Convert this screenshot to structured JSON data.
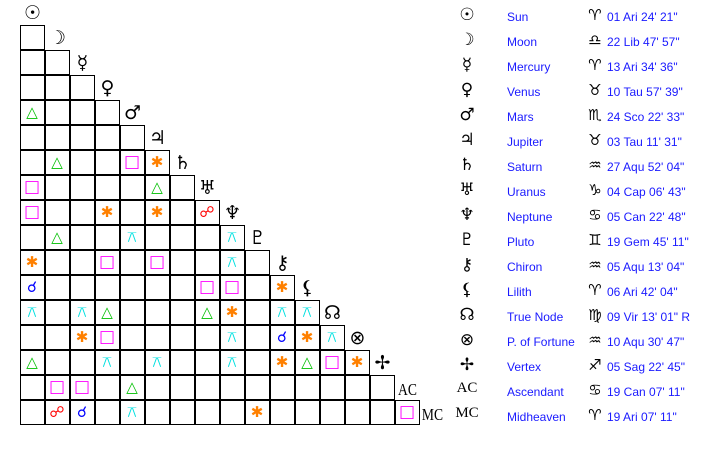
{
  "bodies": [
    {
      "name": "Sun",
      "glyph": "☉",
      "sign_glyph": "♈",
      "position": "01 Ari 24' 21\""
    },
    {
      "name": "Moon",
      "glyph": "☽",
      "sign_glyph": "♎",
      "position": "22 Lib 47' 57\""
    },
    {
      "name": "Mercury",
      "glyph": "☿",
      "sign_glyph": "♈",
      "position": "13 Ari 34' 36\""
    },
    {
      "name": "Venus",
      "glyph": "♀",
      "sign_glyph": "♉",
      "position": "10 Tau 57' 39\""
    },
    {
      "name": "Mars",
      "glyph": "♂",
      "sign_glyph": "♏",
      "position": "24 Sco 22' 33\""
    },
    {
      "name": "Jupiter",
      "glyph": "♃",
      "sign_glyph": "♉",
      "position": "03 Tau 11' 31\""
    },
    {
      "name": "Saturn",
      "glyph": "♄",
      "sign_glyph": "♒",
      "position": "27 Aqu 52' 04\""
    },
    {
      "name": "Uranus",
      "glyph": "♅",
      "sign_glyph": "♑",
      "position": "04 Cap 06' 43\""
    },
    {
      "name": "Neptune",
      "glyph": "♆",
      "sign_glyph": "♋",
      "position": "05 Can 22' 48\""
    },
    {
      "name": "Pluto",
      "glyph": "♇",
      "sign_glyph": "♊",
      "position": "19 Gem 45' 11\""
    },
    {
      "name": "Chiron",
      "glyph": "⚷",
      "sign_glyph": "♒",
      "position": "05 Aqu 13' 04\""
    },
    {
      "name": "Lilith",
      "glyph": "⚸",
      "sign_glyph": "♈",
      "position": "06 Ari 42' 04\""
    },
    {
      "name": "True Node",
      "glyph": "☊",
      "sign_glyph": "♍",
      "position": "09 Vir 13' 01\" R"
    },
    {
      "name": "P. of Fortune",
      "glyph": "⊗",
      "sign_glyph": "♒",
      "position": "10 Aqu 30' 47\""
    },
    {
      "name": "Vertex",
      "glyph": "✢",
      "sign_glyph": "♐",
      "position": "05 Sag 22' 45\""
    },
    {
      "name": "Ascendant",
      "glyph": "AC",
      "sign_glyph": "♋",
      "position": "19 Can 07' 11\""
    },
    {
      "name": "Midheaven",
      "glyph": "MC",
      "sign_glyph": "♈",
      "position": "19 Ari 07' 11\""
    }
  ],
  "aspect_styles": {
    "conjunction": {
      "symbol": "☌",
      "color": "#0000ff"
    },
    "opposition": {
      "symbol": "☍",
      "color": "#ff0000"
    },
    "trine": {
      "symbol": "△",
      "color": "#00c000"
    },
    "square": {
      "symbol": "□",
      "color": "#ff00ff"
    },
    "sextile": {
      "symbol": "✱",
      "color": "#ff8000"
    },
    "quincunx": {
      "symbol": "⚻",
      "color": "#00e0e0"
    }
  },
  "aspects": [
    {
      "a": "Mars",
      "b": "Sun",
      "type": "trine"
    },
    {
      "a": "Saturn",
      "b": "Moon",
      "type": "trine"
    },
    {
      "a": "Saturn",
      "b": "Mars",
      "type": "square"
    },
    {
      "a": "Saturn",
      "b": "Jupiter",
      "type": "sextile"
    },
    {
      "a": "Uranus",
      "b": "Sun",
      "type": "square"
    },
    {
      "a": "Uranus",
      "b": "Jupiter",
      "type": "trine"
    },
    {
      "a": "Neptune",
      "b": "Sun",
      "type": "square"
    },
    {
      "a": "Neptune",
      "b": "Venus",
      "type": "sextile"
    },
    {
      "a": "Neptune",
      "b": "Jupiter",
      "type": "sextile"
    },
    {
      "a": "Neptune",
      "b": "Uranus",
      "type": "opposition"
    },
    {
      "a": "Pluto",
      "b": "Moon",
      "type": "trine"
    },
    {
      "a": "Pluto",
      "b": "Mars",
      "type": "quincunx"
    },
    {
      "a": "Pluto",
      "b": "Neptune",
      "type": "quincunx"
    },
    {
      "a": "Chiron",
      "b": "Sun",
      "type": "sextile"
    },
    {
      "a": "Chiron",
      "b": "Venus",
      "type": "square"
    },
    {
      "a": "Chiron",
      "b": "Jupiter",
      "type": "square"
    },
    {
      "a": "Chiron",
      "b": "Neptune",
      "type": "quincunx"
    },
    {
      "a": "Lilith",
      "b": "Sun",
      "type": "conjunction"
    },
    {
      "a": "Lilith",
      "b": "Uranus",
      "type": "square"
    },
    {
      "a": "Lilith",
      "b": "Neptune",
      "type": "square"
    },
    {
      "a": "Lilith",
      "b": "Chiron",
      "type": "sextile"
    },
    {
      "a": "True Node",
      "b": "Sun",
      "type": "quincunx"
    },
    {
      "a": "True Node",
      "b": "Mercury",
      "type": "quincunx"
    },
    {
      "a": "True Node",
      "b": "Venus",
      "type": "trine"
    },
    {
      "a": "True Node",
      "b": "Uranus",
      "type": "trine"
    },
    {
      "a": "True Node",
      "b": "Neptune",
      "type": "sextile"
    },
    {
      "a": "True Node",
      "b": "Chiron",
      "type": "quincunx"
    },
    {
      "a": "True Node",
      "b": "Lilith",
      "type": "quincunx"
    },
    {
      "a": "P. of Fortune",
      "b": "Mercury",
      "type": "sextile"
    },
    {
      "a": "P. of Fortune",
      "b": "Venus",
      "type": "square"
    },
    {
      "a": "P. of Fortune",
      "b": "Neptune",
      "type": "quincunx"
    },
    {
      "a": "P. of Fortune",
      "b": "Chiron",
      "type": "conjunction"
    },
    {
      "a": "P. of Fortune",
      "b": "Lilith",
      "type": "sextile"
    },
    {
      "a": "P. of Fortune",
      "b": "True Node",
      "type": "quincunx"
    },
    {
      "a": "Vertex",
      "b": "Sun",
      "type": "trine"
    },
    {
      "a": "Vertex",
      "b": "Venus",
      "type": "quincunx"
    },
    {
      "a": "Vertex",
      "b": "Jupiter",
      "type": "quincunx"
    },
    {
      "a": "Vertex",
      "b": "Neptune",
      "type": "quincunx"
    },
    {
      "a": "Vertex",
      "b": "Chiron",
      "type": "sextile"
    },
    {
      "a": "Vertex",
      "b": "Lilith",
      "type": "trine"
    },
    {
      "a": "Vertex",
      "b": "True Node",
      "type": "square"
    },
    {
      "a": "Vertex",
      "b": "P. of Fortune",
      "type": "sextile"
    },
    {
      "a": "Ascendant",
      "b": "Moon",
      "type": "square"
    },
    {
      "a": "Ascendant",
      "b": "Mercury",
      "type": "square"
    },
    {
      "a": "Ascendant",
      "b": "Mars",
      "type": "trine"
    },
    {
      "a": "Midheaven",
      "b": "Moon",
      "type": "opposition"
    },
    {
      "a": "Midheaven",
      "b": "Mercury",
      "type": "conjunction"
    },
    {
      "a": "Midheaven",
      "b": "Mars",
      "type": "quincunx"
    },
    {
      "a": "Midheaven",
      "b": "Pluto",
      "type": "sextile"
    },
    {
      "a": "Midheaven",
      "b": "Ascendant",
      "type": "square"
    }
  ]
}
